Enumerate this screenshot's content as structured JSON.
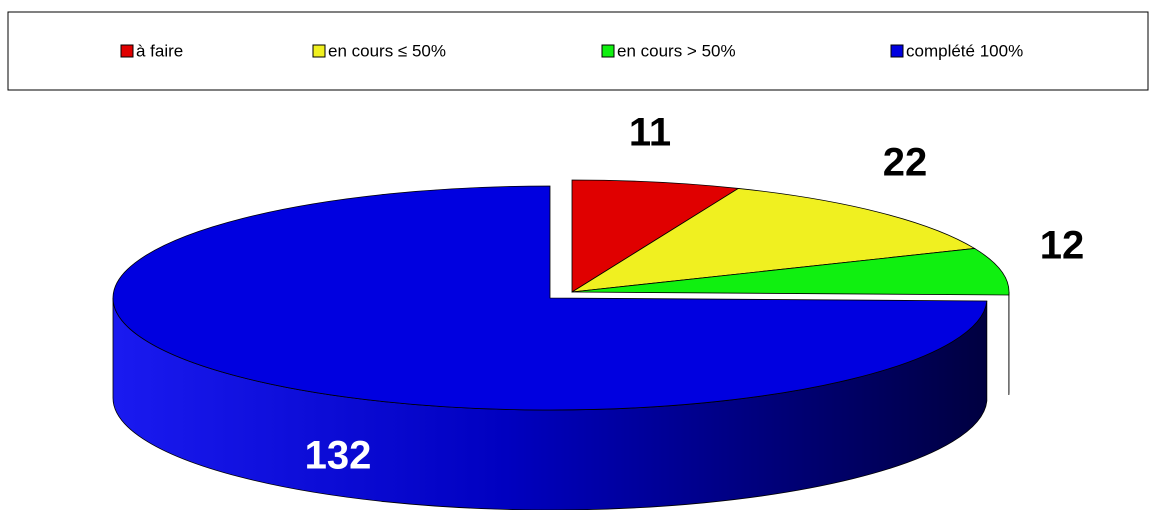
{
  "chart_data": {
    "type": "pie",
    "categories": [
      "à faire",
      "en cours ≤ 50%",
      "en cours > 50%",
      "complété 100%"
    ],
    "values": [
      11,
      22,
      12,
      132
    ],
    "colors": [
      "#e00000",
      "#f0f020",
      "#10f010",
      "#0000e0"
    ],
    "side_colors": [
      "#900000",
      "#a0a000",
      "#006000",
      "#00008a"
    ],
    "legend": "top"
  }
}
